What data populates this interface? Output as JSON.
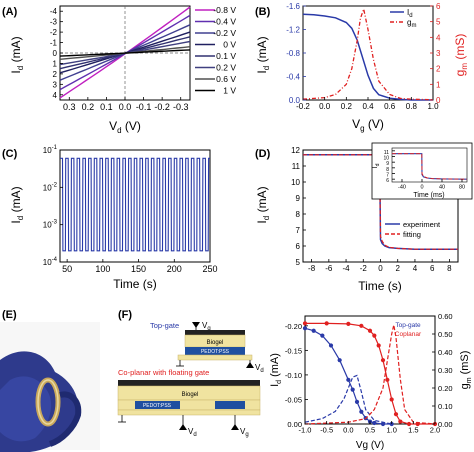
{
  "colors": {
    "axis": "#000000",
    "blue": "#2a3aa8",
    "red": "#e02020",
    "grid": "#808080",
    "panelE_bg": "#f7f7f7",
    "gold": "#f0e3a0",
    "pedot": "#1f4fa0"
  },
  "chart_data": [
    {
      "panel": "A",
      "label": "(A)",
      "type": "line",
      "xlabel": "V_d (V)",
      "ylabel": "I_d (mA)",
      "x_ticks": [
        "0.3",
        "0.2",
        "0.1",
        "0.0",
        "-0.1",
        "-0.2",
        "-0.3"
      ],
      "y_ticks": [
        "-4",
        "-3",
        "-2",
        "-1",
        "0",
        "1",
        "2",
        "3",
        "4"
      ],
      "xlim": [
        0.35,
        -0.35
      ],
      "ylim": [
        4.5,
        -4.5
      ],
      "series": [
        {
          "name": "-0.8 V",
          "color": "#c020c0",
          "x": [
            0.35,
            -0.35
          ],
          "y": [
            4.3,
            -4.4
          ]
        },
        {
          "name": "-0.4 V",
          "color": "#6030b0",
          "x": [
            0.35,
            -0.35
          ],
          "y": [
            3.5,
            -3.6
          ]
        },
        {
          "name": "-0.2 V",
          "color": "#404090",
          "x": [
            0.35,
            -0.35
          ],
          "y": [
            2.6,
            -2.7
          ]
        },
        {
          "name": "0 V",
          "color": "#202060",
          "x": [
            0.35,
            -0.35
          ],
          "y": [
            1.9,
            -2.0
          ]
        },
        {
          "name": "0.1 V",
          "color": "#303070",
          "x": [
            0.35,
            -0.35
          ],
          "y": [
            1.5,
            -1.55
          ]
        },
        {
          "name": "0.2 V",
          "color": "#404080",
          "x": [
            0.35,
            -0.35
          ],
          "y": [
            1.1,
            -1.1
          ]
        },
        {
          "name": "0.6 V",
          "color": "#505050",
          "x": [
            0.35,
            -0.35
          ],
          "y": [
            0.6,
            -0.6
          ]
        },
        {
          "name": "1 V",
          "color": "#000000",
          "x": [
            0.35,
            -0.35
          ],
          "y": [
            0.3,
            -0.3
          ]
        }
      ]
    },
    {
      "panel": "B",
      "label": "(B)",
      "type": "line",
      "xlabel": "V_g (V)",
      "ylabel": "I_d (mA)",
      "y2label": "g_m (mS)",
      "x_ticks": [
        "-0.2",
        "0.0",
        "0.2",
        "0.4",
        "0.6",
        "0.8",
        "1.0"
      ],
      "y_ticks": [
        "-1.6",
        "-1.2",
        "-0.8",
        "-0.4",
        "0.0"
      ],
      "y2_ticks": [
        "6",
        "5",
        "4",
        "3",
        "2",
        "1",
        "0"
      ],
      "xlim": [
        -0.2,
        1.0
      ],
      "ylim": [
        -1.6,
        0.0
      ],
      "y2lim": [
        0,
        6
      ],
      "legend": [
        "I_d",
        "g_m"
      ],
      "series": [
        {
          "name": "I_d",
          "color": "#2a3aa8",
          "x": [
            -0.2,
            -0.1,
            0.0,
            0.1,
            0.2,
            0.25,
            0.3,
            0.35,
            0.4,
            0.45,
            0.5,
            0.6,
            0.7,
            0.8,
            0.9,
            1.0
          ],
          "y": [
            -1.46,
            -1.45,
            -1.43,
            -1.4,
            -1.32,
            -1.22,
            -1.02,
            -0.72,
            -0.42,
            -0.2,
            -0.09,
            -0.03,
            -0.01,
            0.0,
            0.0,
            0.0
          ]
        },
        {
          "name": "g_m",
          "color": "#e02020",
          "dashed": true,
          "x": [
            -0.2,
            0.0,
            0.1,
            0.2,
            0.25,
            0.3,
            0.33,
            0.36,
            0.4,
            0.45,
            0.5,
            0.6,
            0.7,
            0.8,
            1.0
          ],
          "y": [
            0.05,
            0.15,
            0.35,
            1.0,
            2.0,
            3.8,
            5.2,
            5.8,
            4.5,
            2.6,
            1.2,
            0.35,
            0.1,
            0.05,
            0.02
          ]
        }
      ]
    },
    {
      "panel": "C",
      "label": "(C)",
      "type": "line",
      "xlabel": "Time (s)",
      "ylabel": "I_d (mA)",
      "x_ticks": [
        "50",
        "100",
        "150",
        "200",
        "250"
      ],
      "y_ticks": [
        "10^-1",
        "10^-2",
        "10^-3",
        "10^-4"
      ],
      "xlim": [
        40,
        250
      ],
      "y_log": true,
      "ylim": [
        0.0001,
        0.1
      ],
      "pulse_period_s": 8,
      "pulse_high_mA": 0.06,
      "pulse_low_mA": 0.0002,
      "series": [
        {
          "name": "",
          "color": "#2a3aa8"
        }
      ]
    },
    {
      "panel": "D",
      "label": "(D)",
      "type": "line",
      "xlabel": "Time (s)",
      "ylabel": "I_d (mA)",
      "x_ticks": [
        "-8",
        "-6",
        "-4",
        "-2",
        "0",
        "2",
        "4",
        "6",
        "8"
      ],
      "y_ticks": [
        "12",
        "11",
        "10",
        "9",
        "8",
        "7",
        "6",
        "5"
      ],
      "xlim": [
        -9,
        9
      ],
      "ylim": [
        5,
        12
      ],
      "legend": [
        "experiment",
        "fitting"
      ],
      "series": [
        {
          "name": "experiment",
          "color": "#2a3aa8",
          "x": [
            -9,
            -0.1,
            0,
            0.2,
            0.5,
            1,
            2,
            4,
            9
          ],
          "y": [
            11.7,
            11.7,
            6.4,
            6.15,
            6.0,
            5.9,
            5.85,
            5.8,
            5.8
          ]
        },
        {
          "name": "fitting",
          "color": "#e02020",
          "dashed": true,
          "x": [
            -9,
            -0.1,
            0,
            0.2,
            0.5,
            1,
            2,
            4,
            9
          ],
          "y": [
            11.7,
            11.7,
            6.6,
            6.3,
            6.05,
            5.92,
            5.85,
            5.8,
            5.8
          ]
        }
      ],
      "inset": {
        "xlabel": "Time (ms)",
        "ylabel": "I_d",
        "x_ticks": [
          "-40",
          "0",
          "40",
          "80"
        ],
        "y_ticks": [
          "11",
          "10",
          "9",
          "8",
          "7",
          "6"
        ],
        "xlim": [
          -60,
          90
        ],
        "ylim": [
          5.5,
          11.5
        ],
        "series": [
          {
            "name": "experiment",
            "color": "#2a3aa8",
            "x": [
              -60,
              -0.5,
              0,
              3,
              10,
              20,
              40,
              90
            ],
            "y": [
              10.5,
              10.5,
              6.8,
              6.4,
              6.2,
              6.1,
              6.05,
              6.0
            ]
          },
          {
            "name": "fitting",
            "color": "#e02020",
            "dashed": true,
            "x": [
              -60,
              -0.5,
              0,
              3,
              10,
              20,
              40,
              90
            ],
            "y": [
              10.5,
              10.5,
              7.0,
              6.5,
              6.25,
              6.1,
              6.05,
              6.0
            ]
          }
        ]
      }
    },
    {
      "panel": "F",
      "label": "(F)",
      "type": "line",
      "xlabel": "Vg (V)",
      "ylabel": "I_d (mA)",
      "y2label": "g_m (mS)",
      "x_ticks": [
        "-1.0",
        "-0.5",
        "0.0",
        "0.5",
        "1.0",
        "1.5",
        "2.0"
      ],
      "y_ticks": [
        "-0.20",
        "-0.15",
        "-0.10",
        "-0.05",
        "0.00"
      ],
      "y2_ticks": [
        "0.60",
        "0.50",
        "0.40",
        "0.30",
        "0.20",
        "0.10",
        "0.00"
      ],
      "xlim": [
        -1.0,
        2.0
      ],
      "ylim": [
        -0.22,
        0.0
      ],
      "y2lim": [
        0,
        0.6
      ],
      "legend": [
        "Top-gate",
        "Coplanar"
      ],
      "series": [
        {
          "name": "Top-gate I_d",
          "color": "#2a3aa8",
          "markers": true,
          "x": [
            -1.0,
            -0.8,
            -0.6,
            -0.4,
            -0.2,
            0.0,
            0.1,
            0.2,
            0.3,
            0.4,
            0.5,
            0.6,
            0.8,
            1.0
          ],
          "y": [
            -0.195,
            -0.19,
            -0.18,
            -0.16,
            -0.13,
            -0.09,
            -0.07,
            -0.045,
            -0.025,
            -0.012,
            -0.005,
            -0.002,
            0.0,
            0.0
          ]
        },
        {
          "name": "Top-gate g_m",
          "color": "#2a3aa8",
          "dashed": true,
          "x": [
            -1.0,
            -0.6,
            -0.3,
            -0.1,
            0.0,
            0.1,
            0.2,
            0.3,
            0.4,
            0.6,
            1.0
          ],
          "y": [
            0.01,
            0.03,
            0.07,
            0.14,
            0.2,
            0.26,
            0.27,
            0.18,
            0.08,
            0.02,
            0.0
          ]
        },
        {
          "name": "Coplanar I_d",
          "color": "#e02020",
          "markers": true,
          "x": [
            -1.0,
            -0.5,
            0.0,
            0.3,
            0.5,
            0.6,
            0.7,
            0.8,
            0.9,
            1.0,
            1.1,
            1.2,
            1.4,
            1.6,
            2.0
          ],
          "y": [
            -0.205,
            -0.205,
            -0.204,
            -0.2,
            -0.19,
            -0.18,
            -0.16,
            -0.13,
            -0.09,
            -0.05,
            -0.02,
            -0.005,
            0.0,
            0.0,
            0.0
          ]
        },
        {
          "name": "Coplanar g_m",
          "color": "#e02020",
          "dashed": true,
          "x": [
            -1.0,
            0.0,
            0.4,
            0.6,
            0.8,
            0.9,
            1.0,
            1.05,
            1.1,
            1.2,
            1.3,
            1.5,
            2.0
          ],
          "y": [
            0.0,
            0.01,
            0.03,
            0.08,
            0.2,
            0.35,
            0.5,
            0.55,
            0.48,
            0.25,
            0.08,
            0.01,
            0.0
          ]
        }
      ]
    }
  ],
  "schematic": {
    "label": "(F)",
    "top_gate_title": "Top-gate",
    "coplanar_title": "Co-planar with floating gate",
    "electrolyte": "Biogel",
    "pedot": "PEDOT:PSS",
    "vg": "V_g",
    "vd": "V_d"
  },
  "photo": {
    "label": "(E)"
  }
}
